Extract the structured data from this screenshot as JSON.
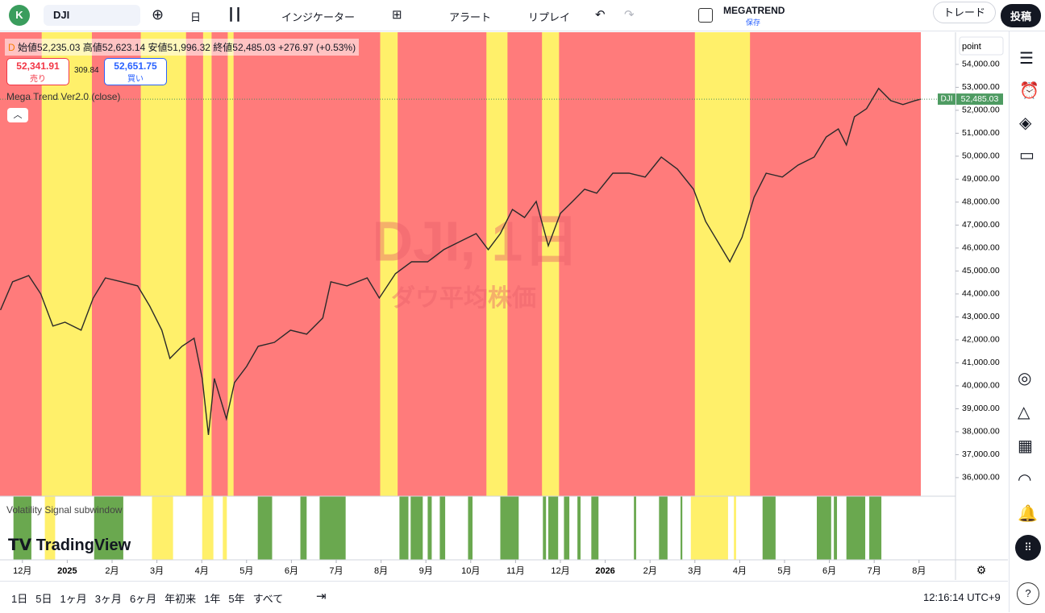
{
  "toolbar": {
    "avatar": "K",
    "symbol": "DJI",
    "interval": "日",
    "indicators": "インジケーター",
    "alert": "アラート",
    "replay": "リプレイ",
    "layout_name": "MEGATREND",
    "layout_status": "保存",
    "trade": "トレード",
    "publish": "投稿"
  },
  "legend": {
    "flag": "D",
    "open_label": "始値",
    "open": "52,235.03",
    "high_label": "高値",
    "high": "52,623.14",
    "low_label": "安値",
    "low": "51,996.32",
    "close_label": "終値",
    "close": "52,485.03",
    "change": "+276.97 (+0.53%)",
    "sell_price": "52,341.91",
    "sell_label": "売り",
    "spread": "309.84",
    "buy_price": "52,651.75",
    "buy_label": "買い",
    "indicator": "Mega Trend Ver2.0 (close)"
  },
  "watermark": {
    "symbol": "DJI, 1日",
    "name": "ダウ平均株価"
  },
  "subwindow": {
    "title": "Volatility Signal subwindow"
  },
  "logo": "TradingView",
  "timeframes": [
    "1日",
    "5日",
    "1ヶ月",
    "3ヶ月",
    "6ヶ月",
    "年初来",
    "1年",
    "5年",
    "すべて"
  ],
  "clock": "12:16:14 UTC+9",
  "chart_data": {
    "type": "line",
    "ylabel": "point",
    "symbol_tag": "DJI",
    "last_value": 52485.03,
    "last_label": "52,485.03",
    "color": "#2a2a2a",
    "background_color": "#ff7b7b",
    "band_color": "#fff06a",
    "signal_color": "#6aa84f",
    "x": [
      -0.49,
      -0.22,
      0.14,
      0.41,
      0.68,
      0.95,
      1.31,
      1.58,
      1.85,
      2.21,
      2.57,
      2.84,
      3.11,
      3.29,
      3.56,
      3.83,
      4.01,
      4.15,
      4.28,
      4.55,
      4.73,
      5.0,
      5.26,
      5.62,
      5.98,
      6.34,
      6.7,
      6.88,
      7.24,
      7.69,
      7.96,
      8.32,
      8.68,
      9.04,
      9.4,
      9.76,
      10.12,
      10.39,
      10.66,
      10.93,
      11.2,
      11.46,
      11.73,
      12.0,
      12.27,
      12.54,
      12.81,
      13.17,
      13.53,
      13.89,
      14.25,
      14.61,
      14.97,
      15.24,
      15.51,
      15.78,
      16.05,
      16.32,
      16.59,
      16.95,
      17.3,
      17.66,
      17.93,
      18.2,
      18.38,
      18.56,
      18.83,
      19.1,
      19.37,
      19.64,
      19.91,
      20.04
    ],
    "values": [
      43300,
      44530,
      44800,
      44000,
      42600,
      42770,
      42420,
      43820,
      44700,
      44530,
      44350,
      43470,
      42420,
      41190,
      41720,
      42070,
      40320,
      37860,
      40320,
      38560,
      40140,
      40840,
      41720,
      41890,
      42420,
      42250,
      42950,
      44530,
      44350,
      44700,
      43820,
      44880,
      45400,
      45400,
      45930,
      46280,
      46630,
      45930,
      46630,
      47680,
      47330,
      48030,
      46100,
      47510,
      48030,
      48560,
      48390,
      49260,
      49260,
      49090,
      49960,
      49440,
      48560,
      47160,
      46280,
      45400,
      46460,
      48210,
      49260,
      49090,
      49610,
      49960,
      50840,
      51190,
      50490,
      51720,
      52070,
      52950,
      52420,
      52250,
      52420,
      52485
    ],
    "xlim": [
      -0.5,
      20.04
    ],
    "xticks": [
      {
        "value": 0,
        "label": "12月"
      },
      {
        "value": 1,
        "label": "2025"
      },
      {
        "value": 2,
        "label": "2月"
      },
      {
        "value": 3,
        "label": "3月"
      },
      {
        "value": 4,
        "label": "4月"
      },
      {
        "value": 5,
        "label": "5月"
      },
      {
        "value": 6,
        "label": "6月"
      },
      {
        "value": 7,
        "label": "7月"
      },
      {
        "value": 8,
        "label": "8月"
      },
      {
        "value": 9,
        "label": "9月"
      },
      {
        "value": 10,
        "label": "10月"
      },
      {
        "value": 11,
        "label": "11月"
      },
      {
        "value": 12,
        "label": "12月"
      },
      {
        "value": 13,
        "label": "2026"
      },
      {
        "value": 14,
        "label": "2月"
      },
      {
        "value": 15,
        "label": "3月"
      },
      {
        "value": 16,
        "label": "4月"
      },
      {
        "value": 17,
        "label": "5月"
      },
      {
        "value": 18,
        "label": "6月"
      },
      {
        "value": 19,
        "label": "7月"
      },
      {
        "value": 20,
        "label": "8月"
      }
    ],
    "ylim": [
      35190,
      55400
    ],
    "yticks": [
      {
        "value": 36000,
        "label": "36,000.00"
      },
      {
        "value": 37000,
        "label": "37,000.00"
      },
      {
        "value": 38000,
        "label": "38,000.00"
      },
      {
        "value": 39000,
        "label": "39,000.00"
      },
      {
        "value": 40000,
        "label": "40,000.00"
      },
      {
        "value": 41000,
        "label": "41,000.00"
      },
      {
        "value": 42000,
        "label": "42,000.00"
      },
      {
        "value": 43000,
        "label": "43,000.00"
      },
      {
        "value": 44000,
        "label": "44,000.00"
      },
      {
        "value": 45000,
        "label": "45,000.00"
      },
      {
        "value": 46000,
        "label": "46,000.00"
      },
      {
        "value": 47000,
        "label": "47,000.00"
      },
      {
        "value": 48000,
        "label": "48,000.00"
      },
      {
        "value": 49000,
        "label": "49,000.00"
      },
      {
        "value": 50000,
        "label": "50,000.00"
      },
      {
        "value": 51000,
        "label": "51,000.00"
      },
      {
        "value": 52000,
        "label": "52,000.00"
      },
      {
        "value": 53000,
        "label": "53,000.00"
      },
      {
        "value": 54000,
        "label": "54,000.00"
      }
    ],
    "bands": [
      {
        "start": 0.43,
        "end": 1.55
      },
      {
        "start": 2.64,
        "end": 3.65
      },
      {
        "start": 4.03,
        "end": 4.22
      },
      {
        "start": 4.58,
        "end": 4.71
      },
      {
        "start": 7.98,
        "end": 8.37
      },
      {
        "start": 10.35,
        "end": 10.82
      },
      {
        "start": 11.59,
        "end": 11.97
      },
      {
        "start": 15.0,
        "end": 16.23
      }
    ],
    "sub_bands": [
      {
        "start": 0.5,
        "end": 0.73
      },
      {
        "start": 2.89,
        "end": 3.36
      },
      {
        "start": 4.01,
        "end": 4.26
      },
      {
        "start": 4.47,
        "end": 4.56
      },
      {
        "start": 14.91,
        "end": 15.74
      },
      {
        "start": 15.87,
        "end": 15.92
      }
    ],
    "signals": [
      {
        "start": -0.2,
        "end": 0.2
      },
      {
        "start": 1.6,
        "end": 2.25
      },
      {
        "start": 5.25,
        "end": 5.57
      },
      {
        "start": 6.2,
        "end": 6.34
      },
      {
        "start": 6.63,
        "end": 7.21
      },
      {
        "start": 8.41,
        "end": 8.61
      },
      {
        "start": 8.66,
        "end": 8.93
      },
      {
        "start": 9.04,
        "end": 9.13
      },
      {
        "start": 9.31,
        "end": 9.43
      },
      {
        "start": 9.94,
        "end": 10.04
      },
      {
        "start": 10.66,
        "end": 11.07
      },
      {
        "start": 11.61,
        "end": 11.68
      },
      {
        "start": 11.73,
        "end": 11.95
      },
      {
        "start": 12.08,
        "end": 12.2
      },
      {
        "start": 12.38,
        "end": 12.45
      },
      {
        "start": 12.69,
        "end": 12.85
      },
      {
        "start": 13.64,
        "end": 13.69
      },
      {
        "start": 14.2,
        "end": 14.39
      },
      {
        "start": 14.68,
        "end": 14.72
      },
      {
        "start": 16.51,
        "end": 16.8
      },
      {
        "start": 17.72,
        "end": 18.04
      },
      {
        "start": 18.1,
        "end": 18.17
      },
      {
        "start": 18.38,
        "end": 18.8
      },
      {
        "start": 18.89,
        "end": 19.16
      }
    ]
  }
}
